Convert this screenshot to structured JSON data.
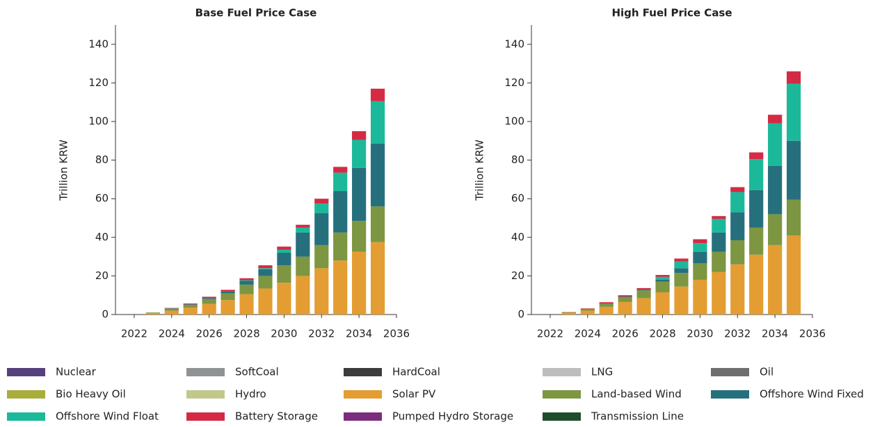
{
  "chart_data": [
    {
      "type": "bar",
      "stacked": true,
      "title": "Base Fuel Price Case",
      "y_label": "Trillion KRW",
      "x": [
        2023,
        2024,
        2025,
        2026,
        2027,
        2028,
        2029,
        2030,
        2031,
        2032,
        2033,
        2034,
        2035
      ],
      "xlim": [
        2021,
        2036
      ],
      "xticks": [
        2022,
        2024,
        2026,
        2028,
        2030,
        2032,
        2034,
        2036
      ],
      "ylim": [
        0,
        150
      ],
      "yticks": [
        0,
        20,
        40,
        60,
        80,
        100,
        120,
        140
      ],
      "series": [
        {
          "name": "Nuclear",
          "color": "#56407e",
          "values": [
            0,
            0,
            0,
            0,
            0,
            0,
            0,
            0,
            0,
            0,
            0,
            0,
            0
          ]
        },
        {
          "name": "SoftCoal",
          "color": "#8f9393",
          "values": [
            0,
            0,
            0,
            0,
            0,
            0,
            0,
            0,
            0,
            0,
            0,
            0,
            0
          ]
        },
        {
          "name": "HardCoal",
          "color": "#3c3c3c",
          "values": [
            0,
            0,
            0,
            0,
            0,
            0,
            0,
            0,
            0,
            0,
            0,
            0,
            0
          ]
        },
        {
          "name": "LNG",
          "color": "#bdbdbd",
          "values": [
            0,
            0,
            0,
            0,
            0,
            0,
            0,
            0,
            0,
            0,
            0,
            0,
            0
          ]
        },
        {
          "name": "Oil",
          "color": "#6e6e6e",
          "values": [
            0,
            0,
            0,
            0,
            0,
            0,
            0,
            0,
            0,
            0,
            0,
            0,
            0
          ]
        },
        {
          "name": "Bio Heavy Oil",
          "color": "#a9ad3c",
          "values": [
            0,
            0,
            0,
            0,
            0,
            0,
            0,
            0,
            0,
            0,
            0,
            0,
            0
          ]
        },
        {
          "name": "Hydro",
          "color": "#c2c88a",
          "values": [
            0,
            0,
            0,
            0,
            0,
            0,
            0,
            0,
            0,
            0,
            0,
            0,
            0
          ]
        },
        {
          "name": "Solar PV",
          "color": "#e39d33",
          "values": [
            0.8,
            2,
            3.5,
            5.5,
            7.5,
            10.5,
            13.5,
            16.5,
            20,
            24,
            28,
            32.5,
            37.5
          ]
        },
        {
          "name": "Land-based Wind",
          "color": "#7d9641",
          "values": [
            0.3,
            1,
            1.5,
            2.5,
            3.5,
            5,
            6.5,
            9,
            10,
            12,
            14.5,
            16,
            18.5
          ]
        },
        {
          "name": "Offshore Wind Fixed",
          "color": "#26707e",
          "values": [
            0,
            0.2,
            0.3,
            0.5,
            1,
            2,
            3.5,
            6.5,
            12.5,
            16.5,
            21.5,
            27.5,
            32.5
          ]
        },
        {
          "name": "Offshore Wind Float",
          "color": "#1bb99a",
          "values": [
            0,
            0,
            0,
            0,
            0,
            0.3,
            0.5,
            1.5,
            2.5,
            5,
            9.5,
            14.5,
            22
          ]
        },
        {
          "name": "Battery Storage",
          "color": "#d42a45",
          "values": [
            0,
            0.2,
            0.4,
            0.7,
            0.8,
            1,
            1.5,
            1.7,
            1.5,
            2.5,
            3,
            4.5,
            6.5
          ]
        },
        {
          "name": "Pumped Hydro Storage",
          "color": "#7b2d7d",
          "values": [
            0,
            0,
            0,
            0,
            0,
            0,
            0,
            0,
            0,
            0,
            0,
            0,
            0
          ]
        },
        {
          "name": "Transmission Line",
          "color": "#1f4d2b",
          "values": [
            0,
            0,
            0,
            0,
            0,
            0,
            0,
            0,
            0,
            0,
            0,
            0,
            0
          ]
        }
      ]
    },
    {
      "type": "bar",
      "stacked": true,
      "title": "High Fuel Price Case",
      "y_label": "Trillion KRW",
      "x": [
        2023,
        2024,
        2025,
        2026,
        2027,
        2028,
        2029,
        2030,
        2031,
        2032,
        2033,
        2034,
        2035
      ],
      "xlim": [
        2021,
        2036
      ],
      "xticks": [
        2022,
        2024,
        2026,
        2028,
        2030,
        2032,
        2034,
        2036
      ],
      "ylim": [
        0,
        150
      ],
      "yticks": [
        0,
        20,
        40,
        60,
        80,
        100,
        120,
        140
      ],
      "series": [
        {
          "name": "Nuclear",
          "color": "#56407e",
          "values": [
            0,
            0,
            0,
            0,
            0,
            0,
            0,
            0,
            0,
            0,
            0,
            0,
            0
          ]
        },
        {
          "name": "SoftCoal",
          "color": "#8f9393",
          "values": [
            0,
            0,
            0,
            0,
            0,
            0,
            0,
            0,
            0,
            0,
            0,
            0,
            0
          ]
        },
        {
          "name": "HardCoal",
          "color": "#3c3c3c",
          "values": [
            0,
            0,
            0,
            0,
            0,
            0,
            0,
            0,
            0,
            0,
            0,
            0,
            0
          ]
        },
        {
          "name": "LNG",
          "color": "#bdbdbd",
          "values": [
            0,
            0,
            0,
            0,
            0,
            0,
            0,
            0,
            0,
            0,
            0,
            0,
            0
          ]
        },
        {
          "name": "Oil",
          "color": "#6e6e6e",
          "values": [
            0,
            0,
            0,
            0,
            0,
            0,
            0,
            0,
            0,
            0,
            0,
            0,
            0
          ]
        },
        {
          "name": "Bio Heavy Oil",
          "color": "#a9ad3c",
          "values": [
            0,
            0,
            0,
            0,
            0,
            0,
            0,
            0,
            0,
            0,
            0,
            0,
            0
          ]
        },
        {
          "name": "Hydro",
          "color": "#c2c88a",
          "values": [
            0,
            0,
            0,
            0,
            0,
            0,
            0,
            0,
            0,
            0,
            0,
            0,
            0
          ]
        },
        {
          "name": "Solar PV",
          "color": "#e39d33",
          "values": [
            0.9,
            2,
            4,
            6.5,
            8.5,
            11.5,
            14.5,
            18,
            22,
            26,
            31,
            36,
            41
          ]
        },
        {
          "name": "Land-based Wind",
          "color": "#7d9641",
          "values": [
            0.3,
            1,
            1.5,
            2.5,
            4,
            5.5,
            7,
            8.5,
            10.5,
            12.5,
            14,
            16,
            18.5
          ]
        },
        {
          "name": "Offshore Wind Fixed",
          "color": "#26707e",
          "values": [
            0,
            0,
            0.3,
            0.3,
            0.5,
            1,
            2.5,
            6,
            10,
            14.5,
            19.5,
            25,
            30.5
          ]
        },
        {
          "name": "Offshore Wind Float",
          "color": "#1bb99a",
          "values": [
            0,
            0,
            0,
            0,
            0,
            1.5,
            3.5,
            4.5,
            7,
            10.5,
            16,
            22,
            29.5
          ]
        },
        {
          "name": "Battery Storage",
          "color": "#d42a45",
          "values": [
            0.1,
            0.2,
            0.6,
            0.7,
            0.7,
            1,
            1.5,
            2,
            1.5,
            2.5,
            3.5,
            4.5,
            6.5
          ]
        },
        {
          "name": "Pumped Hydro Storage",
          "color": "#7b2d7d",
          "values": [
            0,
            0,
            0,
            0,
            0,
            0,
            0,
            0,
            0,
            0,
            0,
            0,
            0
          ]
        },
        {
          "name": "Transmission Line",
          "color": "#1f4d2b",
          "values": [
            0,
            0,
            0,
            0,
            0,
            0,
            0,
            0,
            0,
            0,
            0,
            0,
            0
          ]
        }
      ]
    }
  ]
}
